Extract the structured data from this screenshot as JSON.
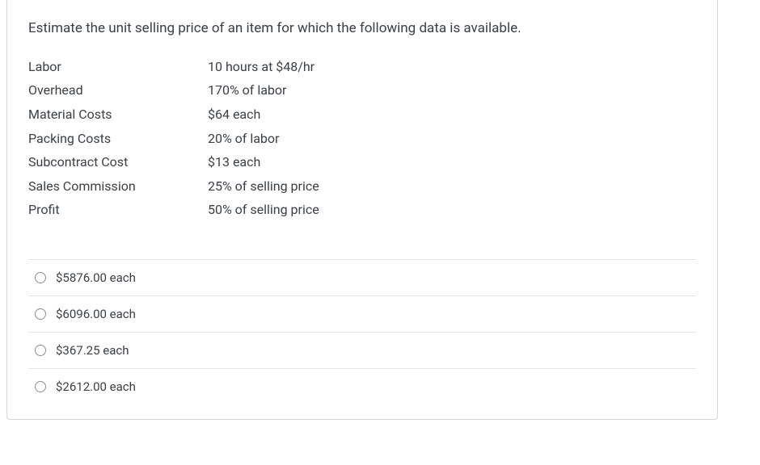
{
  "question": {
    "prompt": "Estimate the unit selling price of an item for which the following data is available."
  },
  "data_rows": [
    {
      "label": "Labor",
      "value": "10 hours at $48/hr"
    },
    {
      "label": "Overhead",
      "value": "170% of labor"
    },
    {
      "label": "Material Costs",
      "value": "$64 each"
    },
    {
      "label": "Packing Costs",
      "value": "20% of labor"
    },
    {
      "label": "Subcontract Cost",
      "value": "$13 each"
    },
    {
      "label": "Sales Commission",
      "value": "25% of selling price"
    },
    {
      "label": "Profit",
      "value": "50% of selling price"
    }
  ],
  "options": [
    {
      "label": "$5876.00 each"
    },
    {
      "label": "$6096.00 each"
    },
    {
      "label": "$367.25 each"
    },
    {
      "label": "$2612.00 each"
    }
  ],
  "colors": {
    "text": "#3a3f44",
    "border": "#d6d6d6",
    "divider": "#e6e6e6",
    "radio_border": "#8a8f94",
    "background": "#ffffff"
  }
}
